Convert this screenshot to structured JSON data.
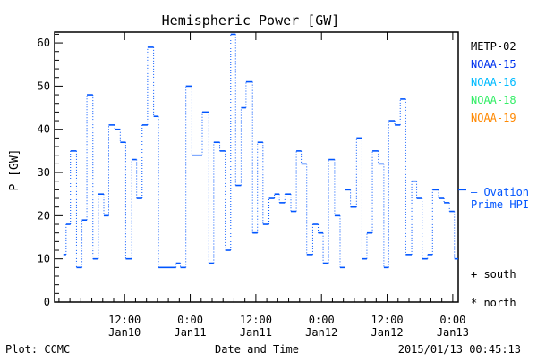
{
  "chart_data": {
    "type": "line",
    "style": "step",
    "title": "Hemispheric Power [GW]",
    "xlabel": "Date and Time",
    "ylabel": "P [GW]",
    "ylim": [
      0,
      62.5
    ],
    "yticks": [
      0,
      10,
      20,
      30,
      40,
      50,
      60
    ],
    "x_units": "hours since 2015/01/10 00:00",
    "xlim": [
      -0.8,
      73.0
    ],
    "xticks": [
      {
        "h": 12,
        "time": "12:00",
        "date": "Jan10"
      },
      {
        "h": 24,
        "time": "0:00",
        "date": "Jan11"
      },
      {
        "h": 36,
        "time": "12:00",
        "date": "Jan11"
      },
      {
        "h": 48,
        "time": "0:00",
        "date": "Jan12"
      },
      {
        "h": 60,
        "time": "12:00",
        "date": "Jan12"
      },
      {
        "h": 72,
        "time": "0:00",
        "date": "Jan13"
      }
    ],
    "series": [
      {
        "name": "NOAA-15",
        "color": "#0055ff",
        "t_start": [
          0.8,
          1.3,
          2.1,
          3.2,
          4.2,
          5.1,
          6.2,
          7.2,
          8.2,
          9.1,
          10.2,
          11.2,
          12.2,
          13.3,
          14.2,
          15.2,
          16.2,
          17.3,
          18.2,
          20.8,
          21.4,
          22.2,
          23.2,
          24.3,
          26.2,
          27.4,
          28.3,
          29.4,
          30.4,
          31.4,
          32.3,
          33.3,
          34.2,
          35.4,
          36.3,
          37.3,
          38.4,
          39.4,
          40.3,
          41.3,
          42.4,
          43.4,
          44.3,
          45.3,
          46.4,
          47.4,
          48.3,
          49.3,
          50.4,
          51.4,
          52.3,
          53.3,
          54.4,
          55.4,
          56.3,
          57.3,
          58.4,
          59.4,
          60.3,
          61.4,
          62.4,
          63.4,
          64.5,
          65.4,
          66.4,
          67.4,
          68.3,
          69.4,
          70.4,
          71.4,
          72.3
        ],
        "t_end": 73.0,
        "values": [
          11,
          18,
          35,
          8,
          19,
          48,
          10,
          25,
          20,
          41,
          40,
          37,
          10,
          33,
          24,
          41,
          59,
          43,
          8,
          8,
          9,
          8,
          50,
          34,
          44,
          9,
          37,
          35,
          12,
          62,
          27,
          45,
          51,
          16,
          37,
          18,
          24,
          25,
          23,
          25,
          21,
          35,
          32,
          11,
          18,
          16,
          9,
          33,
          20,
          8,
          26,
          22,
          38,
          10,
          16,
          35,
          32,
          8,
          42,
          41,
          47,
          11,
          28,
          24,
          10,
          11,
          26,
          24,
          23,
          21,
          10
        ]
      }
    ],
    "ovation": {
      "value": 26,
      "label_line1": "— Ovation",
      "label_line2": "Prime HPI",
      "color": "#0055ff"
    },
    "legend": [
      {
        "label": "METP-02",
        "color": "#000000"
      },
      {
        "label": "NOAA-15",
        "color": "#0033ee"
      },
      {
        "label": "NOAA-16",
        "color": "#00bbff"
      },
      {
        "label": "NOAA-18",
        "color": "#33ee66"
      },
      {
        "label": "NOAA-19",
        "color": "#ff8800"
      }
    ],
    "legend_position": "right",
    "markers_legend": [
      {
        "symbol": "+",
        "label": "+ south"
      },
      {
        "symbol": "*",
        "label": "* north"
      }
    ]
  },
  "footer": {
    "plot_credit": "Plot: CCMC",
    "timestamp": "2015/01/13 00:45:13"
  }
}
